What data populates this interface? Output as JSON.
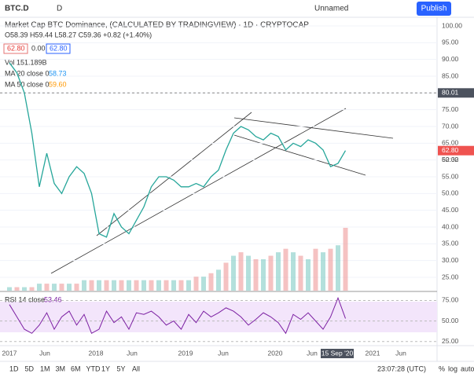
{
  "toolbar": {
    "symbol": "BTC.D",
    "interval": "D",
    "layout": "Unnamed",
    "publish": "Publish"
  },
  "legend": {
    "title": "Market Cap BTC Dominance, (CALCULATED BY TRADINGVIEW) · 1D · CRYPTOCAP",
    "ohlc": "O58.39 H59.44 L58.27 C59.36 +0.82 (+1.40%)",
    "bid": "62.80",
    "spread": "0.00",
    "ask": "62.80",
    "vol": "Vol 151.189B",
    "ma20": "MA 20 close 0",
    "ma20_value": "58.73",
    "ma50": "MA 50 close 0",
    "ma50_value": "59.60"
  },
  "price_axis": {
    "ylim": [
      25.5,
      100
    ],
    "yticks": [
      {
        "value": 100,
        "label": "100.00"
      },
      {
        "value": 95,
        "label": "95.00"
      },
      {
        "value": 90,
        "label": "90.00"
      },
      {
        "value": 85,
        "label": "85.00"
      },
      {
        "value": 80,
        "label": "80.00"
      },
      {
        "value": 75,
        "label": "75.00"
      },
      {
        "value": 70,
        "label": "70.00"
      },
      {
        "value": 65,
        "label": "65.00"
      },
      {
        "value": 60,
        "label": "60.00"
      },
      {
        "value": 55,
        "label": "55.00"
      },
      {
        "value": 50,
        "label": "50.00"
      },
      {
        "value": 45,
        "label": "45.00"
      },
      {
        "value": 40,
        "label": "40.00"
      },
      {
        "value": 35,
        "label": "35.00"
      },
      {
        "value": 30,
        "label": "30.00"
      },
      {
        "value": 25,
        "label": "25.00"
      }
    ],
    "crosshair": {
      "value": 80.01,
      "label": "80.01"
    },
    "last": {
      "value": 62.8,
      "label": "62.80"
    },
    "countdown": "52:32"
  },
  "dominance": [
    89,
    86,
    80,
    68,
    52,
    62,
    53,
    50,
    55,
    58,
    56,
    50,
    38,
    37,
    44,
    40,
    38,
    42,
    46,
    52,
    55,
    55,
    54,
    52,
    52,
    53,
    52,
    55,
    57,
    63,
    68,
    70,
    69,
    67,
    66,
    68,
    67,
    63,
    65,
    64,
    66,
    65,
    63,
    58,
    59,
    62.8
  ],
  "volume": [
    1,
    1,
    1,
    1,
    2,
    2,
    2,
    2,
    2,
    2,
    3,
    3,
    3,
    3,
    3,
    3,
    3,
    3,
    3,
    3,
    3,
    3,
    3,
    3,
    3,
    4,
    4,
    5,
    6,
    8,
    10,
    11,
    10,
    9,
    9,
    10,
    11,
    12,
    11,
    10,
    9,
    12,
    11,
    12,
    13,
    18
  ],
  "rsi": {
    "label": "RSI 14 close",
    "value": "53.46",
    "ylim": [
      20,
      85
    ],
    "yticks": [
      {
        "value": 75,
        "label": "75.00"
      },
      {
        "value": 50,
        "label": "50.00"
      },
      {
        "value": 25,
        "label": "25.00"
      }
    ],
    "values": [
      70,
      55,
      40,
      35,
      45,
      60,
      40,
      55,
      62,
      45,
      58,
      35,
      40,
      62,
      48,
      55,
      40,
      60,
      58,
      62,
      55,
      45,
      50,
      40,
      58,
      48,
      62,
      55,
      60,
      66,
      62,
      55,
      45,
      52,
      60,
      55,
      48,
      35,
      58,
      52,
      60,
      50,
      40,
      55,
      78,
      53
    ]
  },
  "time_axis": [
    "2017",
    "Jun",
    "2018",
    "Jun",
    "2019",
    "Jun",
    "2020",
    "Jun",
    "2021",
    "Jun"
  ],
  "crosshair_date": "15 Sep '20",
  "bottom": {
    "ranges": [
      "1D",
      "5D",
      "1M",
      "3M",
      "6M",
      "YTD",
      "1Y",
      "5Y",
      "All"
    ],
    "clock": "23:07:28 (UTC)",
    "percent": "%",
    "log": "log",
    "auto": "auto"
  }
}
